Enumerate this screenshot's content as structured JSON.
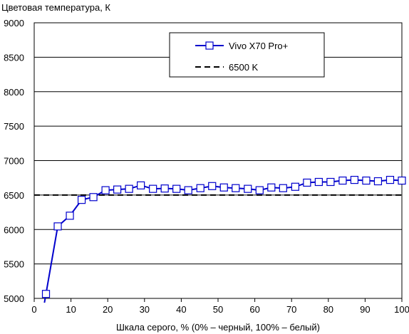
{
  "chart_data": {
    "type": "line",
    "title": "",
    "ylabel": "Цветовая температура, К",
    "xlabel": "Шкала серого, % (0% – черный, 100% – белый)",
    "xlim": [
      0,
      100
    ],
    "ylim": [
      5000,
      9000
    ],
    "xticks": [
      0,
      10,
      20,
      30,
      40,
      50,
      60,
      70,
      80,
      90,
      100
    ],
    "yticks": [
      5000,
      5500,
      6000,
      6500,
      7000,
      7500,
      8000,
      8500,
      9000
    ],
    "grid": "horizontal",
    "legend_position": "top-right",
    "series": [
      {
        "name": "Vivo X70 Pro+",
        "color": "#0000cc",
        "marker": "square",
        "x": [
          3.2,
          6.4,
          9.7,
          12.9,
          16.1,
          19.4,
          22.6,
          25.8,
          29.0,
          32.3,
          35.5,
          38.7,
          41.9,
          45.2,
          48.4,
          51.6,
          54.8,
          58.1,
          61.3,
          64.5,
          67.7,
          71.0,
          74.2,
          77.4,
          80.6,
          83.9,
          87.1,
          90.3,
          93.5,
          96.8,
          100
        ],
        "y": [
          5065,
          6045,
          6200,
          6430,
          6470,
          6570,
          6580,
          6590,
          6640,
          6590,
          6595,
          6590,
          6570,
          6600,
          6630,
          6610,
          6600,
          6590,
          6570,
          6610,
          6600,
          6620,
          6680,
          6690,
          6690,
          6710,
          6720,
          6710,
          6700,
          6720,
          6710
        ]
      },
      {
        "name": "6500 K",
        "color": "#000000",
        "style": "dashed",
        "y": 6500
      }
    ]
  }
}
